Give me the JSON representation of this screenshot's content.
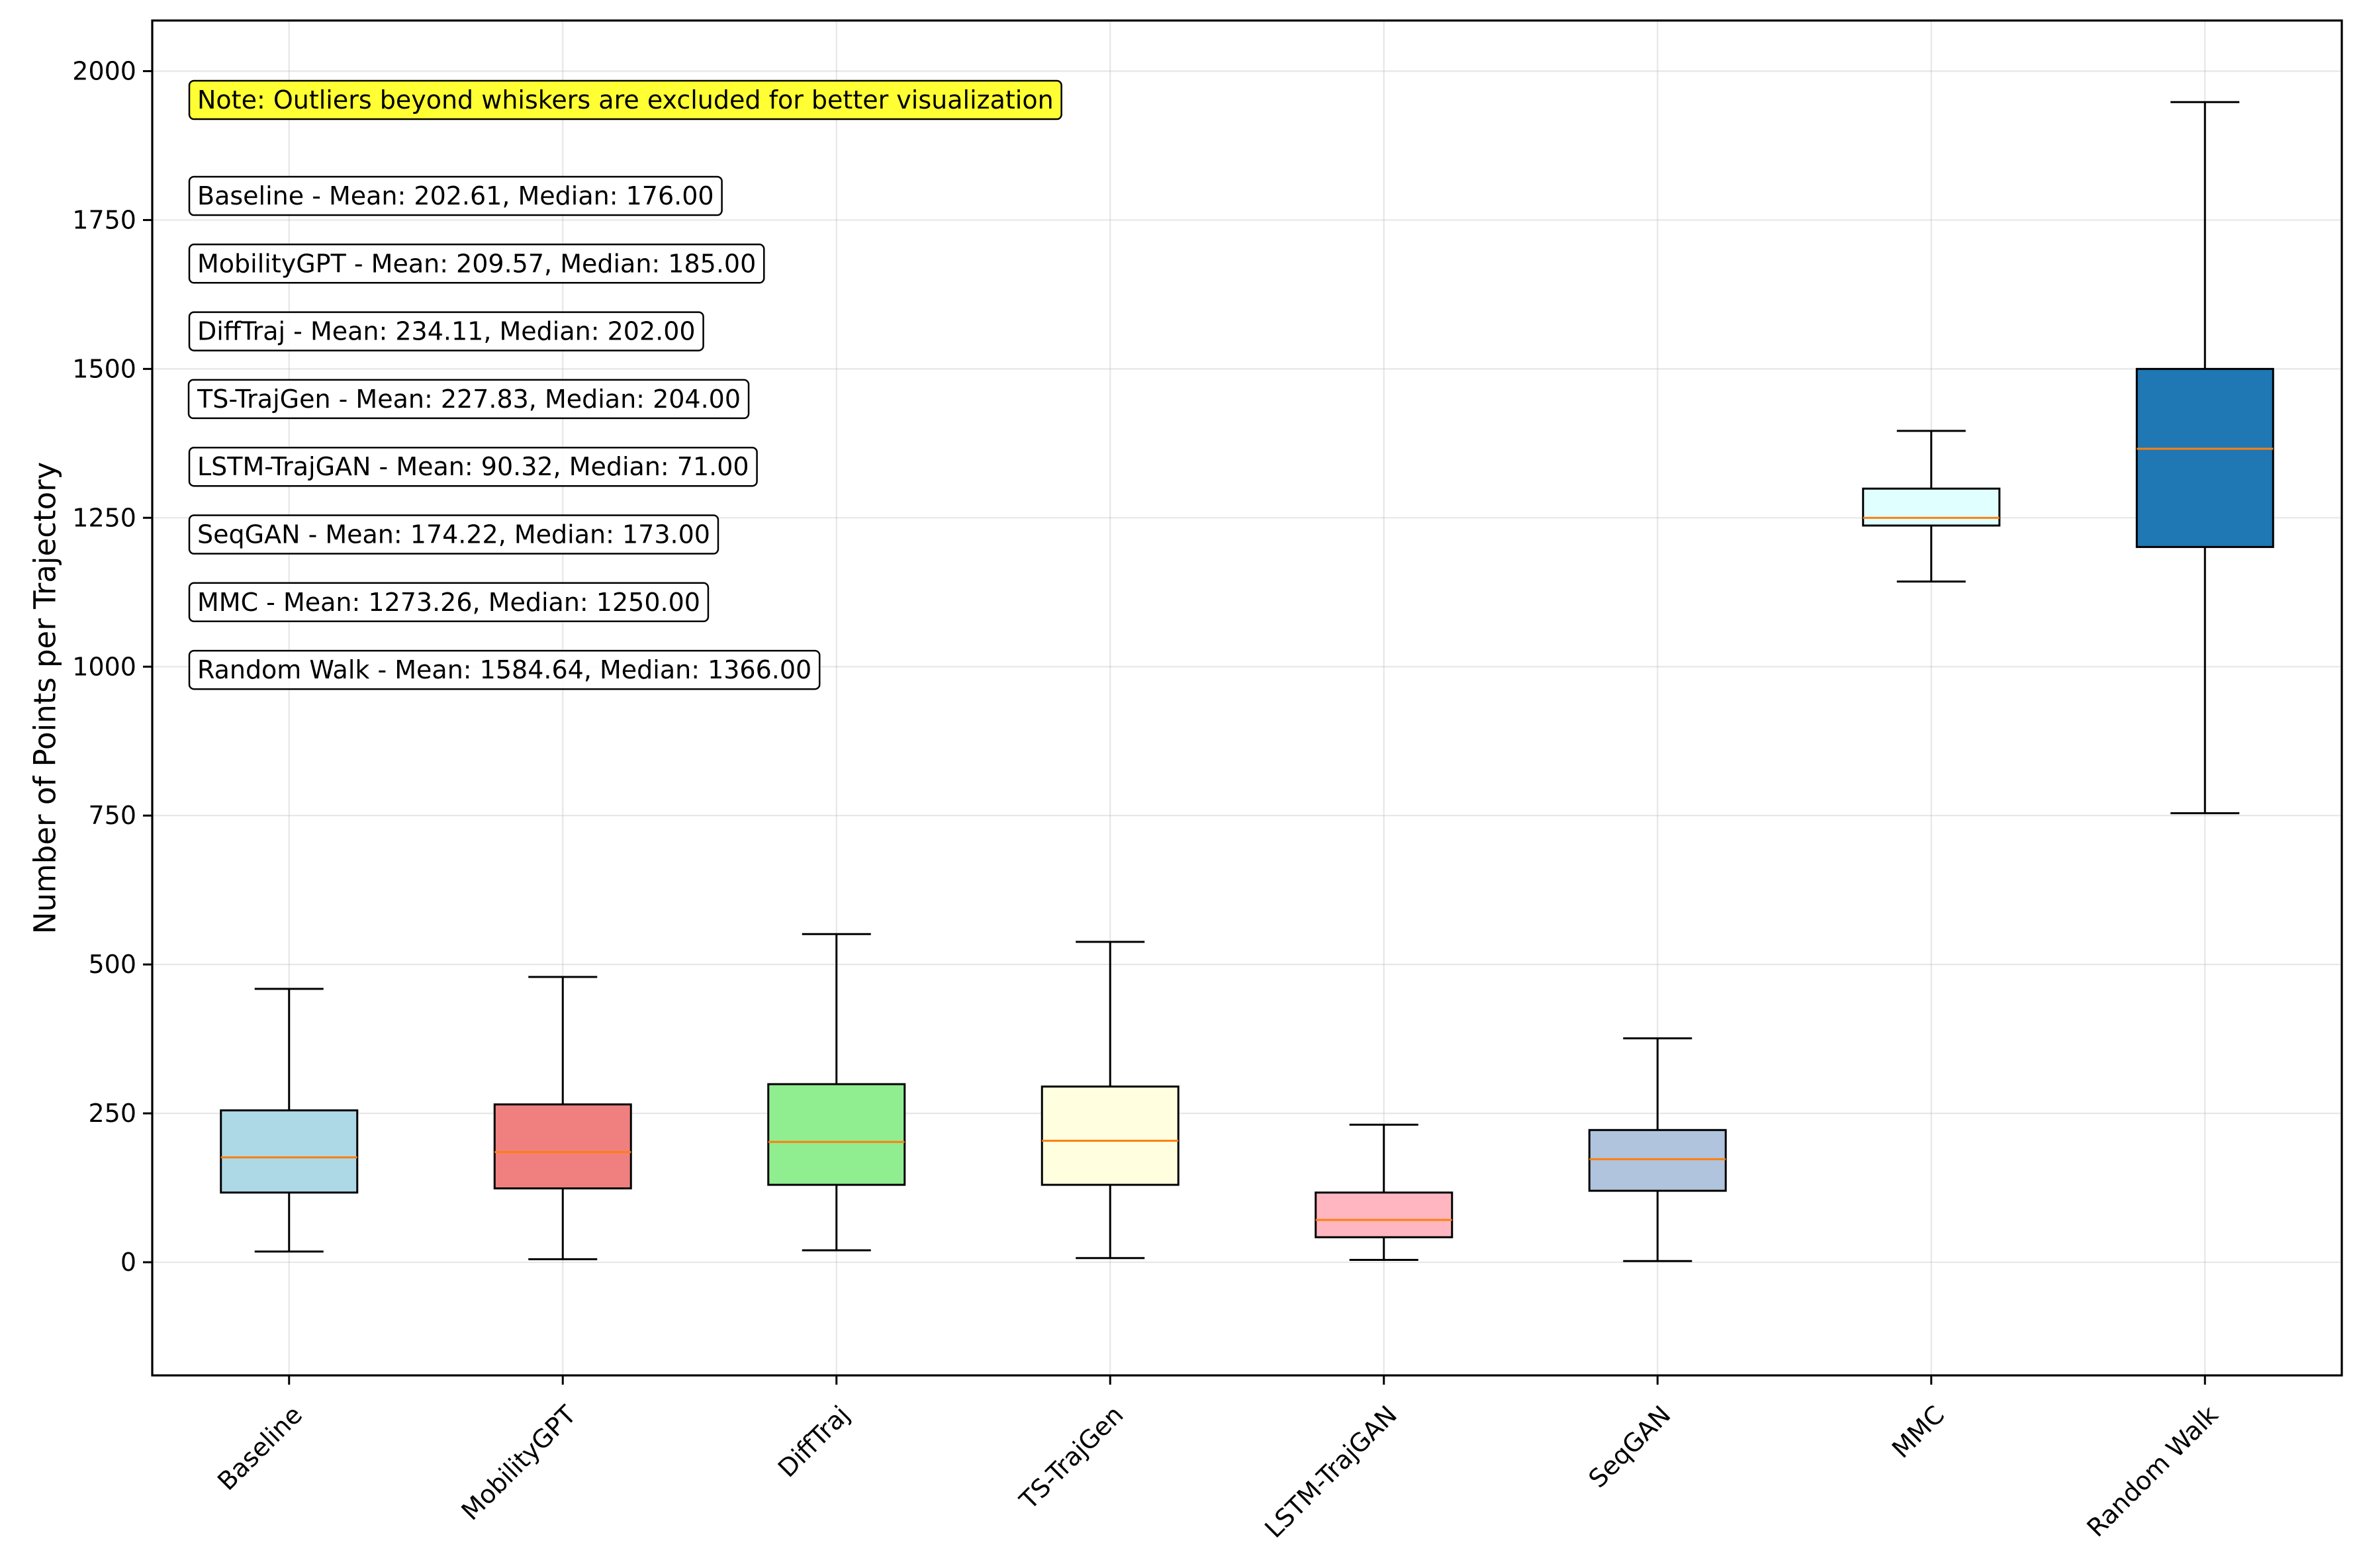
{
  "chart_data": {
    "type": "boxplot",
    "title": "",
    "xlabel": "",
    "ylabel": "Number of Points per Trajectory",
    "ylim": [
      -190,
      2085
    ],
    "yticks": [
      0,
      250,
      500,
      750,
      1000,
      1250,
      1500,
      1750,
      2000
    ],
    "grid": true,
    "note": "Note: Outliers beyond whiskers are excluded for better visualization",
    "note_color": "#ffff33",
    "median_color": "#ff7f0e",
    "boxes": [
      {
        "name": "Baseline",
        "whisker_low": 18,
        "q1": 117,
        "median": 176,
        "q3": 255,
        "whisker_high": 459,
        "mean": 202.61,
        "color": "#add8e6",
        "stat_text": "Baseline - Mean: 202.61, Median: 176.00"
      },
      {
        "name": "MobilityGPT",
        "whisker_low": 5,
        "q1": 124,
        "median": 185,
        "q3": 265,
        "whisker_high": 479,
        "mean": 209.57,
        "color": "#f08080",
        "stat_text": "MobilityGPT - Mean: 209.57, Median: 185.00"
      },
      {
        "name": "DiffTraj",
        "whisker_low": 20,
        "q1": 130,
        "median": 202,
        "q3": 299,
        "whisker_high": 551,
        "mean": 234.11,
        "color": "#90ee90",
        "stat_text": "DiffTraj - Mean: 234.11, Median: 202.00"
      },
      {
        "name": "TS-TrajGen",
        "whisker_low": 7,
        "q1": 130,
        "median": 204,
        "q3": 295,
        "whisker_high": 538,
        "mean": 227.83,
        "color": "#ffffe0",
        "stat_text": "TS-TrajGen - Mean: 227.83, Median: 204.00"
      },
      {
        "name": "LSTM-TrajGAN",
        "whisker_low": 4,
        "q1": 42,
        "median": 71,
        "q3": 117,
        "whisker_high": 231,
        "mean": 90.32,
        "color": "#ffb6c1",
        "stat_text": "LSTM-TrajGAN - Mean: 90.32, Median: 71.00"
      },
      {
        "name": "SeqGAN",
        "whisker_low": 2,
        "q1": 120,
        "median": 173,
        "q3": 222,
        "whisker_high": 376,
        "mean": 174.22,
        "color": "#b0c4de",
        "stat_text": "SeqGAN - Mean: 174.22, Median: 173.00"
      },
      {
        "name": "MMC",
        "whisker_low": 1143,
        "q1": 1237,
        "median": 1250,
        "q3": 1299,
        "whisker_high": 1396,
        "mean": 1273.26,
        "color": "#e0ffff",
        "stat_text": "MMC - Mean: 1273.26, Median: 1250.00"
      },
      {
        "name": "Random Walk",
        "whisker_low": 754,
        "q1": 1201,
        "median": 1366,
        "q3": 1500,
        "whisker_high": 1948,
        "mean": 1584.64,
        "color": "#1f77b4",
        "stat_text": "Random Walk - Mean: 1584.64, Median: 1366.00"
      }
    ]
  }
}
